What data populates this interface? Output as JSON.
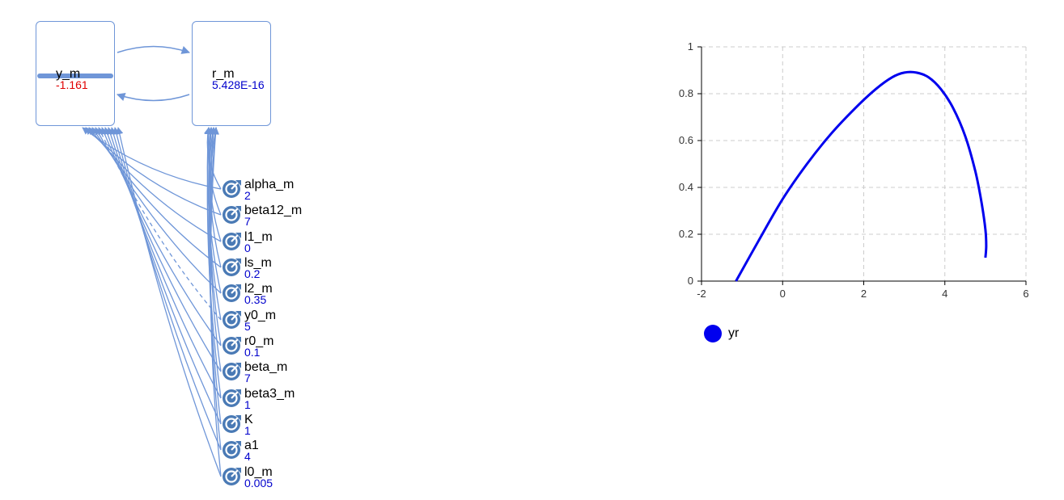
{
  "stocks": {
    "y": {
      "name": "y_m",
      "value": "-1.161"
    },
    "r": {
      "name": "r_m",
      "value": "5.428E-16"
    }
  },
  "parameters": [
    {
      "name": "alpha_m",
      "value": "2"
    },
    {
      "name": "beta12_m",
      "value": "7"
    },
    {
      "name": "l1_m",
      "value": "0"
    },
    {
      "name": "ls_m",
      "value": "0.2"
    },
    {
      "name": "l2_m",
      "value": "0.35"
    },
    {
      "name": "y0_m",
      "value": "5"
    },
    {
      "name": "r0_m",
      "value": "0.1"
    },
    {
      "name": "beta_m",
      "value": "7"
    },
    {
      "name": "beta3_m",
      "value": "1"
    },
    {
      "name": "K",
      "value": "1"
    },
    {
      "name": "a1",
      "value": "4"
    },
    {
      "name": "l0_m",
      "value": "0.005"
    }
  ],
  "colors": {
    "link": "#6f96d8",
    "dial": "#4a7ab5",
    "series": "#0000ee",
    "negative_value": "#e00000",
    "value": "#0000cc"
  },
  "icons": {
    "parameter": "dial-icon"
  },
  "chart_data": {
    "type": "line",
    "xlim": [
      -2,
      6
    ],
    "ylim": [
      0,
      1
    ],
    "xticks": [
      "-2",
      "0",
      "2",
      "4",
      "6"
    ],
    "yticks": [
      "0",
      "0.2",
      "0.4",
      "0.6",
      "0.8",
      "1"
    ],
    "grid": true,
    "legend_position": "bottom-left",
    "series": [
      {
        "name": "yr",
        "x": [
          -1.15,
          -0.6,
          0,
          0.6,
          1.2,
          1.8,
          2.3,
          2.7,
          3.0,
          3.3,
          3.6,
          3.9,
          4.2,
          4.5,
          4.75,
          4.9,
          5.0,
          5.02,
          5.0
        ],
        "y": [
          0.0,
          0.17,
          0.35,
          0.5,
          0.63,
          0.74,
          0.82,
          0.87,
          0.89,
          0.89,
          0.87,
          0.82,
          0.74,
          0.62,
          0.47,
          0.34,
          0.22,
          0.15,
          0.1
        ]
      }
    ]
  }
}
